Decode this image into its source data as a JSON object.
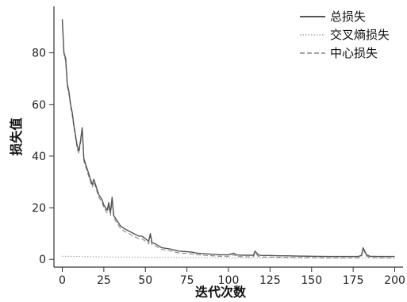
{
  "chart_data": {
    "type": "line",
    "title": "",
    "xlabel": "迭代次数",
    "ylabel": "损失值",
    "xlim": [
      -5,
      205
    ],
    "ylim": [
      -3,
      98
    ],
    "xticks": [
      0,
      25,
      50,
      75,
      100,
      125,
      150,
      175,
      200
    ],
    "yticks": [
      0,
      20,
      40,
      60,
      80
    ],
    "grid": false,
    "legend_position": "top-right",
    "series": [
      {
        "name": "总损失",
        "color": "#555555",
        "dash": "",
        "x": [
          0,
          1,
          2,
          3,
          4,
          5,
          6,
          7,
          8,
          9,
          10,
          11,
          12,
          13,
          14,
          15,
          16,
          17,
          18,
          19,
          20,
          21,
          22,
          23,
          24,
          25,
          26,
          27,
          28,
          29,
          30,
          31,
          32,
          33,
          35,
          37,
          40,
          43,
          46,
          48,
          50,
          52,
          53,
          54,
          56,
          60,
          65,
          70,
          75,
          78,
          80,
          85,
          90,
          95,
          100,
          103,
          105,
          110,
          115,
          116,
          118,
          120,
          125,
          130,
          135,
          140,
          150,
          160,
          170,
          178,
          180,
          181,
          183,
          185,
          190,
          200
        ],
        "values": [
          93,
          80,
          78,
          68,
          65,
          60,
          57,
          52,
          48,
          44,
          42,
          46,
          51,
          39,
          37,
          35,
          33,
          31,
          29,
          31,
          29,
          27,
          25,
          24,
          23,
          21,
          20,
          19,
          22,
          18,
          24,
          17,
          16,
          15,
          13,
          12,
          11,
          10,
          9,
          9,
          8,
          7,
          10,
          6.5,
          6,
          4.5,
          4,
          3.2,
          3,
          2.8,
          2.5,
          2.2,
          2,
          1.8,
          1.8,
          2.4,
          1.7,
          1.6,
          1.6,
          3.2,
          1.7,
          1.5,
          1.5,
          1.4,
          1.4,
          1.3,
          1.2,
          1.1,
          1.1,
          1.1,
          1.5,
          4.5,
          1.8,
          1.2,
          1.1,
          1.1
        ]
      },
      {
        "name": "交叉熵损失",
        "color": "#aaaaaa",
        "dash": "1.5,2",
        "x": [
          0,
          10,
          20,
          30,
          40,
          50,
          60,
          75,
          100,
          125,
          150,
          175,
          200
        ],
        "values": [
          1.2,
          1.1,
          1.0,
          0.9,
          0.9,
          0.8,
          0.8,
          0.7,
          0.6,
          0.6,
          0.5,
          0.5,
          0.5
        ]
      },
      {
        "name": "中心损失",
        "color": "#888888",
        "dash": "6,3",
        "x": [
          0,
          1,
          2,
          3,
          4,
          5,
          6,
          7,
          8,
          9,
          10,
          11,
          12,
          13,
          14,
          15,
          16,
          17,
          18,
          19,
          20,
          21,
          22,
          23,
          24,
          25,
          26,
          27,
          28,
          29,
          30,
          31,
          32,
          33,
          35,
          37,
          40,
          43,
          46,
          48,
          50,
          52,
          53,
          54,
          56,
          60,
          65,
          70,
          75,
          78,
          80,
          85,
          90,
          95,
          100,
          103,
          105,
          110,
          115,
          116,
          118,
          120,
          125,
          130,
          135,
          140,
          150,
          160,
          170,
          178,
          180,
          181,
          183,
          185,
          190,
          200
        ],
        "values": [
          92,
          79,
          77,
          67,
          64,
          59,
          56,
          51,
          47,
          43,
          41,
          45,
          50,
          38,
          36,
          34,
          32,
          30,
          28,
          30,
          28,
          26,
          24,
          23,
          22,
          20,
          19,
          18,
          21,
          17,
          23,
          16,
          15,
          14,
          12,
          11,
          10,
          9,
          8,
          8,
          7,
          6,
          9,
          5.6,
          5.2,
          3.8,
          3.3,
          2.5,
          2.3,
          2.1,
          1.9,
          1.6,
          1.4,
          1.2,
          1.2,
          1.8,
          1.1,
          1.0,
          1.0,
          2.6,
          1.1,
          0.9,
          0.9,
          0.8,
          0.8,
          0.7,
          0.7,
          0.6,
          0.6,
          0.6,
          1.0,
          4.0,
          1.3,
          0.7,
          0.6,
          0.6
        ]
      }
    ]
  }
}
